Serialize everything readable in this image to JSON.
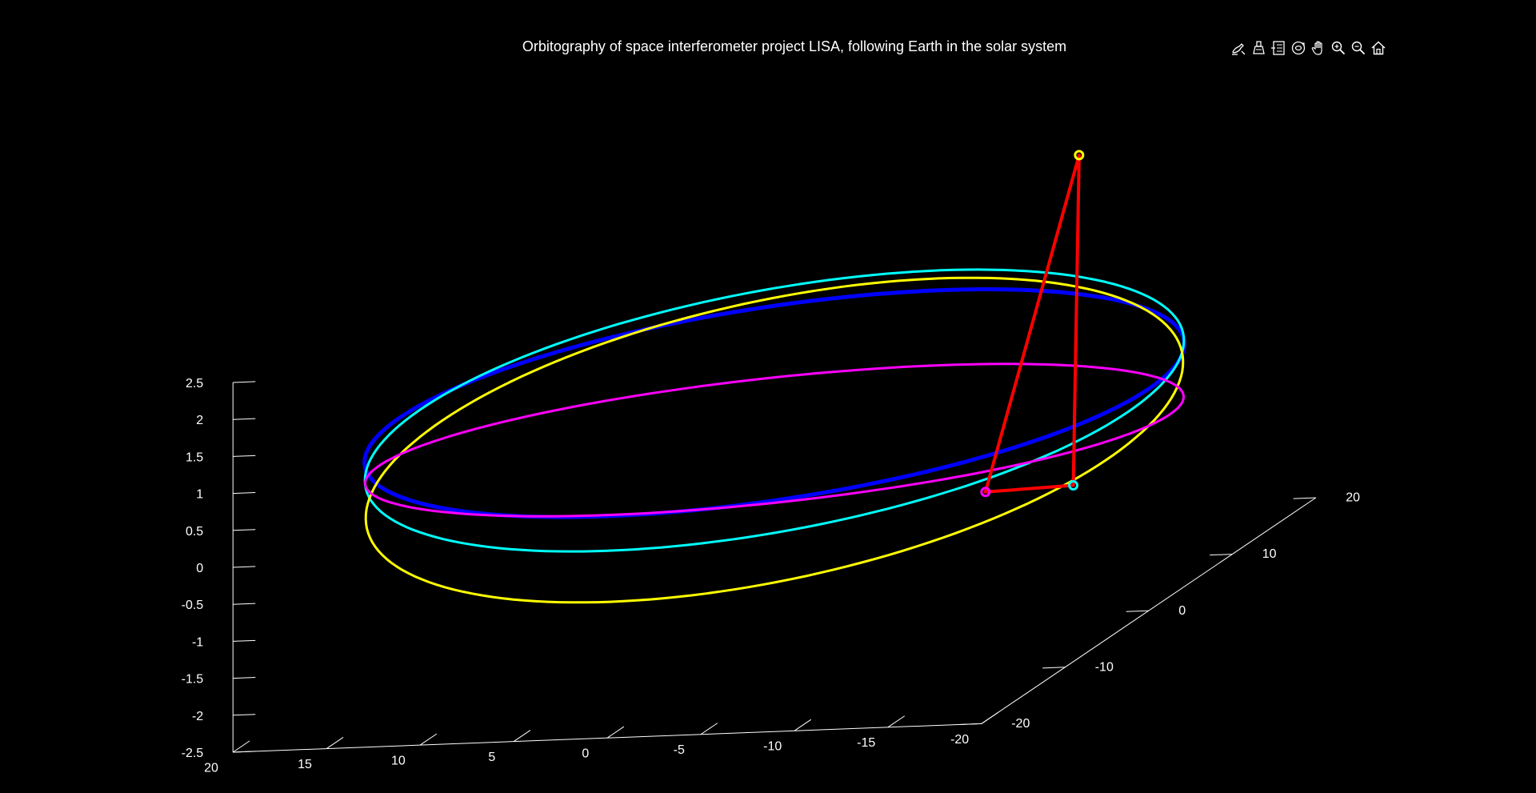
{
  "chart_data": {
    "type": "line3d",
    "title": "Orbitography of space interferometer project LISA, following Earth in the solar system",
    "background_color": "#000000",
    "foreground_color": "#ffffff",
    "grid": false,
    "x_axis": {
      "ticks": [
        20,
        15,
        10,
        5,
        0,
        -5,
        -10,
        -15,
        -20
      ],
      "tick_labels": [
        "20",
        "15",
        "10",
        "5",
        "0",
        "-5",
        "-10",
        "-15",
        "-20"
      ],
      "range": [
        -20,
        20
      ]
    },
    "y_axis": {
      "ticks": [
        -20,
        -10,
        0,
        10,
        20
      ],
      "tick_labels": [
        "-20",
        "-10",
        "0",
        "10",
        "20"
      ],
      "range": [
        -20,
        20
      ]
    },
    "z_axis": {
      "ticks": [
        2.5,
        2,
        1.5,
        1,
        0.5,
        0,
        -0.5,
        -1,
        -1.5,
        -2,
        -2.5
      ],
      "tick_labels": [
        "2.5",
        "2",
        "1.5",
        "1",
        "0.5",
        "0",
        "-0.5",
        "-1",
        "-1.5",
        "-2",
        "-2.5"
      ],
      "range": [
        -2.5,
        2.5
      ]
    },
    "series": [
      {
        "color": "#0000ff",
        "shape": "ellipse",
        "center": [
          0,
          0,
          0.5
        ],
        "radius": 20,
        "inclination_deg": 0,
        "width": 5
      },
      {
        "color": "#00ffff",
        "shape": "ellipse",
        "center": [
          0,
          0,
          0.4
        ],
        "radius": 20,
        "inclination_deg": 6,
        "width": 3
      },
      {
        "color": "#ffff00",
        "shape": "ellipse",
        "center": [
          0,
          0,
          0.0
        ],
        "radius": 20,
        "inclination_deg": 11,
        "width": 3
      },
      {
        "color": "#ff00ff",
        "shape": "ellipse",
        "center": [
          0,
          0,
          0.0
        ],
        "radius": 20,
        "inclination_deg": -8,
        "width": 3
      }
    ],
    "spacecraft": [
      {
        "color": "#ffff00",
        "position": [
          -13.2,
          6.9,
          3.2
        ]
      },
      {
        "color": "#ff00ff",
        "position": [
          -13.2,
          -4.3,
          -0.5
        ]
      },
      {
        "color": "#00ffff",
        "position": [
          -17.0,
          -2.3,
          -0.6
        ]
      }
    ],
    "triangle_color": "#ff0000"
  },
  "toolbar": {
    "icons": [
      "brush-icon",
      "data-cursor-icon",
      "legend-icon",
      "rotate-3d-icon",
      "pan-icon",
      "zoom-in-icon",
      "zoom-out-icon",
      "home-icon"
    ]
  }
}
